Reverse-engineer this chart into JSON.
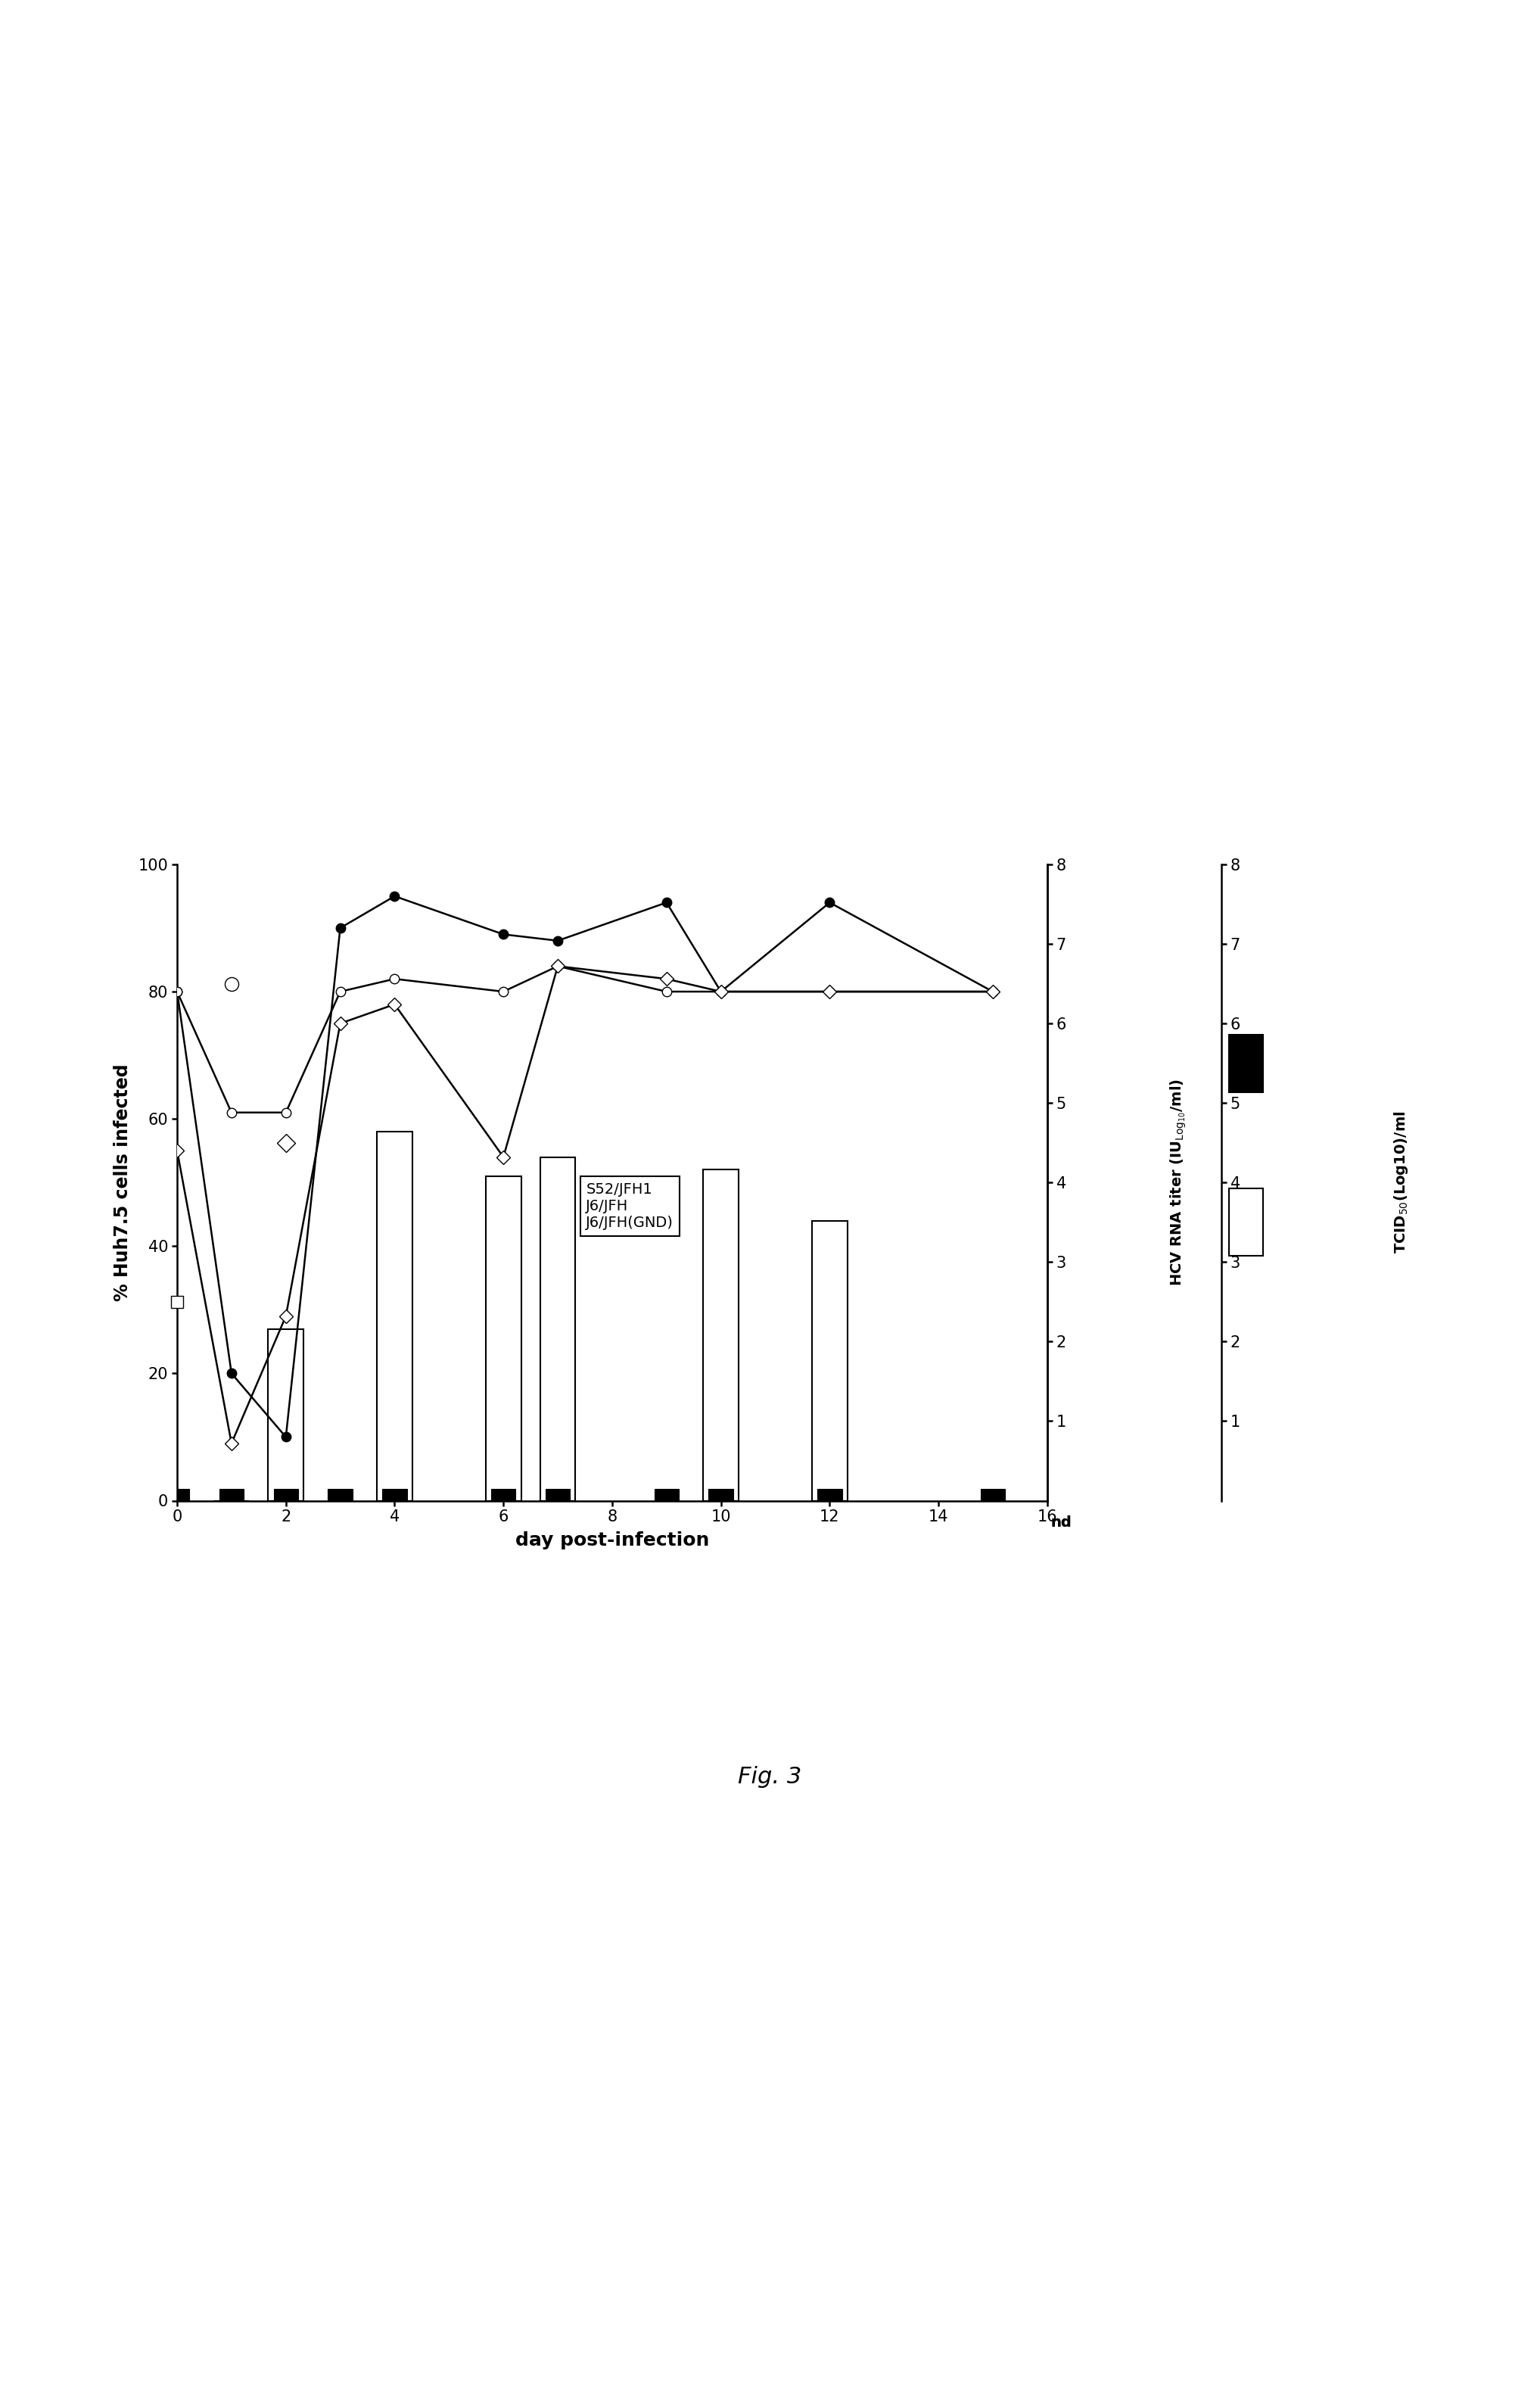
{
  "S52_line_x": [
    0,
    1,
    2,
    3,
    4,
    6,
    7,
    9,
    10,
    12,
    15
  ],
  "S52_line_y": [
    80,
    20,
    10,
    90,
    95,
    89,
    88,
    94,
    80,
    94,
    80
  ],
  "J6_line_x": [
    0,
    1,
    2,
    3,
    4,
    6,
    7,
    9,
    10,
    12,
    15
  ],
  "J6_line_y": [
    80,
    61,
    61,
    80,
    82,
    80,
    84,
    80,
    80,
    80,
    80
  ],
  "GND_line_x": [
    0,
    1,
    2,
    3,
    4,
    6,
    7,
    9,
    10,
    12,
    15
  ],
  "GND_line_y": [
    55,
    9,
    29,
    75,
    78,
    54,
    84,
    82,
    80,
    80,
    80
  ],
  "S52_bar_x": [
    1,
    2,
    4,
    6,
    7,
    10,
    12
  ],
  "S52_bar_y": [
    0,
    27,
    58,
    51,
    54,
    52,
    44
  ],
  "GND_bar_x": [
    0,
    1,
    2,
    3,
    4,
    6,
    7,
    9,
    10,
    12,
    15
  ],
  "xlim": [
    0,
    16
  ],
  "ylim_left": [
    0,
    100
  ],
  "ylim_right": [
    0,
    8
  ],
  "xticks": [
    0,
    2,
    4,
    6,
    8,
    10,
    12,
    14,
    16
  ],
  "yticks_left": [
    0,
    20,
    40,
    60,
    80,
    100
  ],
  "yticks_right": [
    1,
    2,
    3,
    4,
    5,
    6,
    7,
    8
  ],
  "rna_open_circle": [
    1,
    6.5
  ],
  "rna_open_square": [
    0,
    2.5
  ],
  "rna_open_diamond": [
    2,
    4.5
  ],
  "xlabel": "day post-infection",
  "ylabel_left": "% Huh7.5 cells infected",
  "legend_lines": [
    "S52/JFH1",
    "J6/JFH",
    "J6/JFH(GND)"
  ],
  "fig_label": "Fig. 3",
  "background_color": "#ffffff"
}
